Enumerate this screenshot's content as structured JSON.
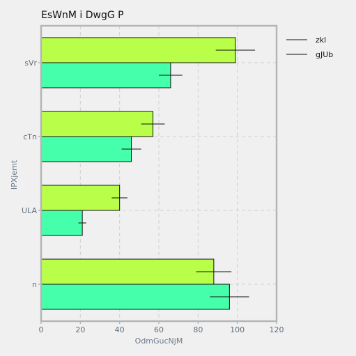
{
  "chart_data": {
    "type": "bar",
    "orientation": "horizontal",
    "title": "EsWnM i DwgG P",
    "xlabel": "OdmGucNjM",
    "ylabel": "IPXjemt",
    "xlim": [
      0,
      120
    ],
    "xticks": [
      0,
      20,
      40,
      60,
      80,
      100,
      120
    ],
    "categories": [
      "sVr",
      "cTn",
      "ULA",
      "n"
    ],
    "series": [
      {
        "name": "zkl",
        "color": "#b9ff4a",
        "values": [
          99,
          57,
          40,
          88
        ],
        "errors": [
          10,
          6,
          4,
          9
        ]
      },
      {
        "name": "gJUb",
        "color": "#46ffab",
        "values": [
          66,
          46,
          21,
          96
        ],
        "errors": [
          6,
          5,
          2,
          10
        ]
      }
    ],
    "grid": true,
    "legend": "top-right-outside"
  }
}
